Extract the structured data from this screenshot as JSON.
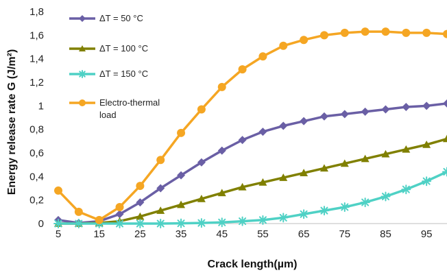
{
  "chart_data": {
    "type": "line",
    "title": "",
    "xlabel": "Crack length(µm)",
    "ylabel": "Energy release rate G (J/m²)",
    "x": [
      5,
      10,
      15,
      20,
      25,
      30,
      35,
      40,
      45,
      50,
      55,
      60,
      65,
      70,
      75,
      80,
      85,
      90,
      95,
      100
    ],
    "x_ticks": [
      5,
      15,
      25,
      35,
      45,
      55,
      65,
      75,
      85,
      95
    ],
    "x_tick_labels": [
      "5",
      "15",
      "25",
      "35",
      "45",
      "55",
      "65",
      "75",
      "85",
      "95"
    ],
    "xlim": [
      5,
      100
    ],
    "ylim": [
      0,
      1.8
    ],
    "y_ticks": [
      0,
      0.2,
      0.4,
      0.6,
      0.8,
      1.0,
      1.2,
      1.4,
      1.6,
      1.8
    ],
    "y_tick_labels": [
      "0",
      "0,2",
      "0,4",
      "0,6",
      "0,8",
      "1",
      "1,2",
      "1,4",
      "1,6",
      "1,8"
    ],
    "grid": false,
    "legend_position": "top-left",
    "series": [
      {
        "name": "ΔT = 50 °C",
        "color": "#6a5fa5",
        "marker": "diamond",
        "values": [
          0.03,
          0.005,
          0.02,
          0.08,
          0.18,
          0.3,
          0.41,
          0.52,
          0.62,
          0.71,
          0.78,
          0.83,
          0.87,
          0.91,
          0.93,
          0.95,
          0.97,
          0.99,
          1.0,
          1.02
        ]
      },
      {
        "name": "ΔT = 100 °C",
        "color": "#808000",
        "marker": "triangle",
        "values": [
          0.0,
          0.0,
          0.005,
          0.02,
          0.06,
          0.11,
          0.16,
          0.21,
          0.26,
          0.31,
          0.35,
          0.39,
          0.43,
          0.47,
          0.51,
          0.55,
          0.59,
          0.63,
          0.67,
          0.72
        ]
      },
      {
        "name": "ΔT = 150 °C",
        "color": "#4fd1c5",
        "marker": "asterisk",
        "values": [
          0.0,
          0.0,
          0.0,
          0.0,
          0.0,
          0.0,
          0.002,
          0.005,
          0.01,
          0.02,
          0.03,
          0.05,
          0.08,
          0.11,
          0.14,
          0.18,
          0.23,
          0.29,
          0.36,
          0.44
        ]
      },
      {
        "name": "Electro-thermal load",
        "color": "#f5a623",
        "marker": "circle",
        "values": [
          0.28,
          0.1,
          0.03,
          0.14,
          0.32,
          0.54,
          0.77,
          0.97,
          1.16,
          1.31,
          1.42,
          1.51,
          1.56,
          1.6,
          1.62,
          1.63,
          1.63,
          1.62,
          1.62,
          1.61
        ]
      }
    ]
  }
}
